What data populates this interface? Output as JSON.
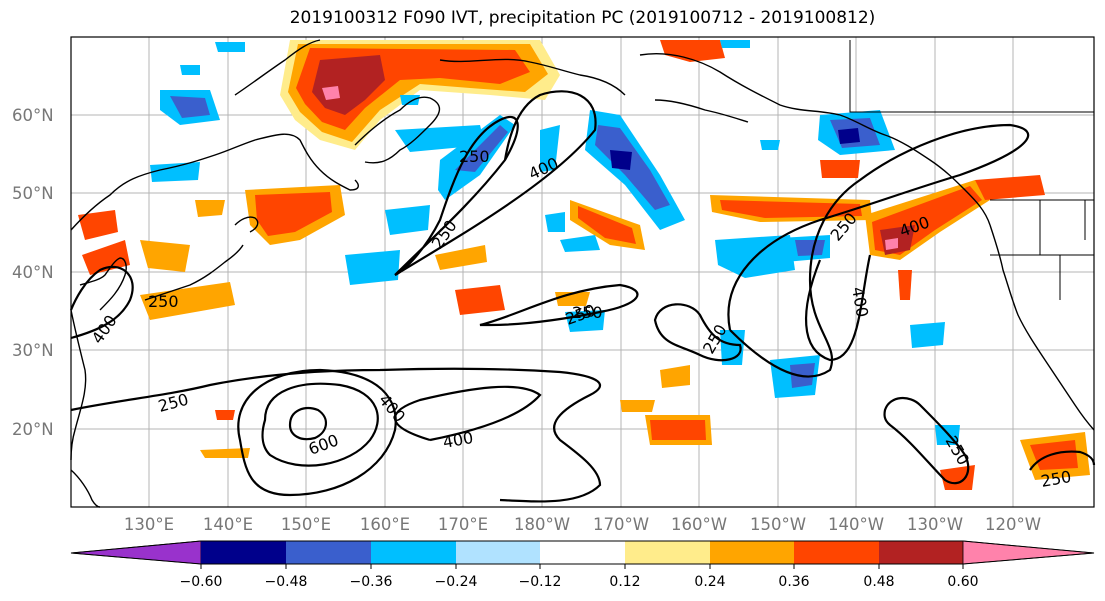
{
  "title": "2019100312 F090 IVT, precipitation PC (2019100712 - 2019100812)",
  "map": {
    "lat_labels": [
      "60°N",
      "50°N",
      "40°N",
      "30°N",
      "20°N"
    ],
    "lon_labels": [
      "130°E",
      "140°E",
      "150°E",
      "160°E",
      "170°E",
      "180°W",
      "170°W",
      "160°W",
      "150°W",
      "140°W",
      "130°W",
      "120°W"
    ],
    "ivt_contour_labels": [
      "250",
      "400",
      "250",
      "400",
      "250",
      "250",
      "250",
      "400",
      "400",
      "600",
      "400",
      "250",
      "250",
      "400",
      "250",
      "250",
      "250"
    ],
    "colors": {
      "land": "#ffffff",
      "ocean": "#ffffff",
      "coast": "#000000",
      "grid": "#b0b0b0"
    }
  },
  "colorbar": {
    "colors": [
      "#9932CC",
      "#00008B",
      "#3A5FCD",
      "#00BFFF",
      "#B0E2FF",
      "#FFFFFF",
      "#FFEC8B",
      "#FFA500",
      "#FF4500",
      "#B22222",
      "#FF82AB"
    ],
    "tick_labels": [
      "−0.60",
      "−0.48",
      "−0.36",
      "−0.24",
      "−0.12",
      "0.12",
      "0.24",
      "0.36",
      "0.48",
      "0.60"
    ]
  }
}
